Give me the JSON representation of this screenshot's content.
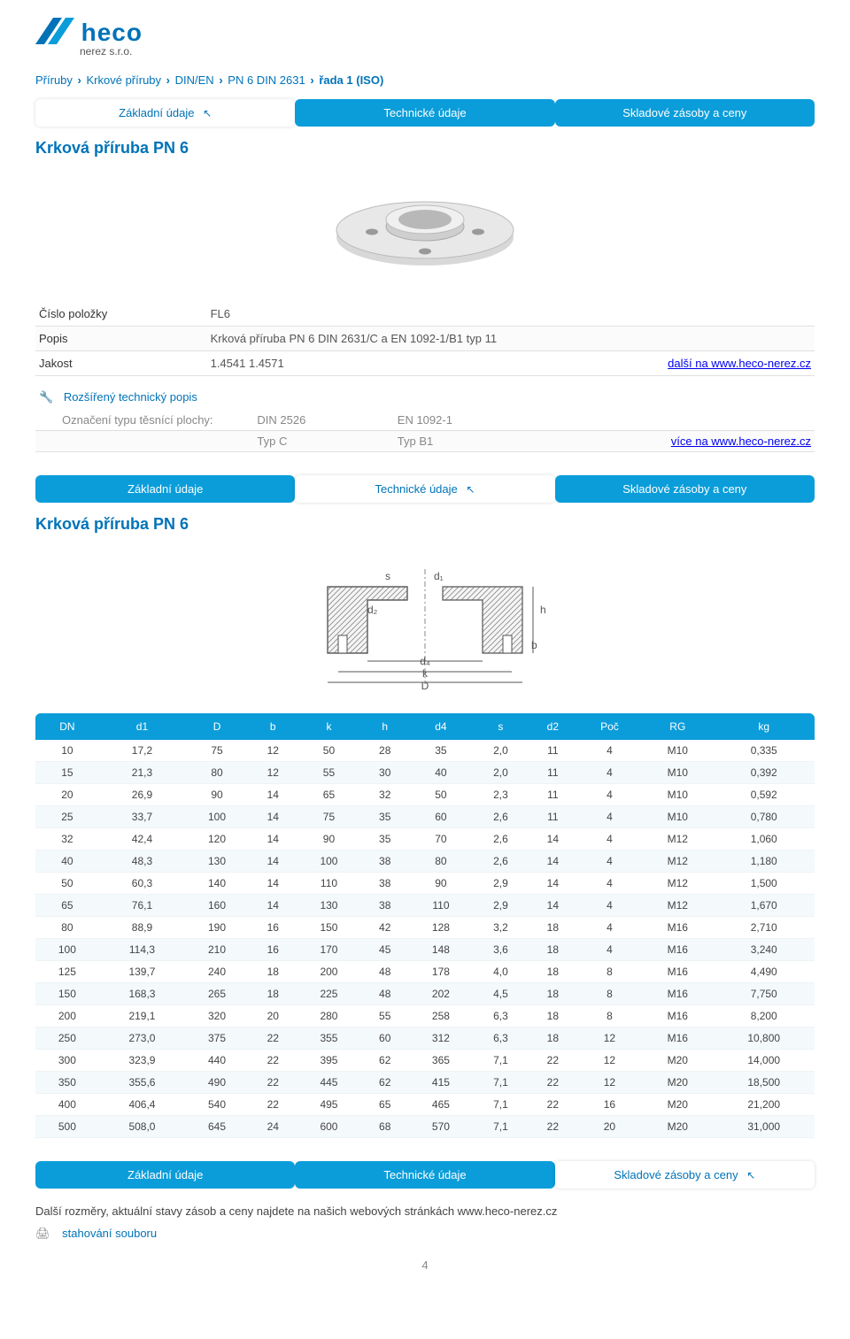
{
  "logo": {
    "brand": "heco",
    "sub": "nerez s.r.o."
  },
  "breadcrumb": [
    "Příruby",
    "Krkové příruby",
    "DIN/EN",
    "PN 6 DIN 2631",
    "řada 1 (ISO)"
  ],
  "tabs": {
    "basic": "Základní údaje",
    "technical": "Technické údaje",
    "stock": "Skladové zásoby a ceny"
  },
  "section_title": "Krková příruba PN 6",
  "info": {
    "item_label": "Číslo položky",
    "item_value": "FL6",
    "desc_label": "Popis",
    "desc_value": "Krková příruba PN 6 DIN 2631/C a EN 1092-1/B1 typ 11",
    "quality_label": "Jakost",
    "quality_value": "1.4541   1.4571",
    "more_link": "další na www.heco-nerez.cz",
    "extended_label": "Rozšířený technický popis",
    "sealing_label": "Označení typu těsnící plochy:",
    "sealing_din": "DIN 2526",
    "sealing_din_type": "Typ C",
    "sealing_en": "EN 1092-1",
    "sealing_en_type": "Typ B1",
    "sealing_link": "více na www.heco-nerez.cz"
  },
  "diagram_labels": [
    "s",
    "d1",
    "d2",
    "h",
    "b",
    "d4",
    "k",
    "D"
  ],
  "table": {
    "columns": [
      "DN",
      "d1",
      "D",
      "b",
      "k",
      "h",
      "d4",
      "s",
      "d2",
      "Poč",
      "RG",
      "kg"
    ],
    "rows": [
      [
        "10",
        "17,2",
        "75",
        "12",
        "50",
        "28",
        "35",
        "2,0",
        "11",
        "4",
        "M10",
        "0,335"
      ],
      [
        "15",
        "21,3",
        "80",
        "12",
        "55",
        "30",
        "40",
        "2,0",
        "11",
        "4",
        "M10",
        "0,392"
      ],
      [
        "20",
        "26,9",
        "90",
        "14",
        "65",
        "32",
        "50",
        "2,3",
        "11",
        "4",
        "M10",
        "0,592"
      ],
      [
        "25",
        "33,7",
        "100",
        "14",
        "75",
        "35",
        "60",
        "2,6",
        "11",
        "4",
        "M10",
        "0,780"
      ],
      [
        "32",
        "42,4",
        "120",
        "14",
        "90",
        "35",
        "70",
        "2,6",
        "14",
        "4",
        "M12",
        "1,060"
      ],
      [
        "40",
        "48,3",
        "130",
        "14",
        "100",
        "38",
        "80",
        "2,6",
        "14",
        "4",
        "M12",
        "1,180"
      ],
      [
        "50",
        "60,3",
        "140",
        "14",
        "110",
        "38",
        "90",
        "2,9",
        "14",
        "4",
        "M12",
        "1,500"
      ],
      [
        "65",
        "76,1",
        "160",
        "14",
        "130",
        "38",
        "110",
        "2,9",
        "14",
        "4",
        "M12",
        "1,670"
      ],
      [
        "80",
        "88,9",
        "190",
        "16",
        "150",
        "42",
        "128",
        "3,2",
        "18",
        "4",
        "M16",
        "2,710"
      ],
      [
        "100",
        "114,3",
        "210",
        "16",
        "170",
        "45",
        "148",
        "3,6",
        "18",
        "4",
        "M16",
        "3,240"
      ],
      [
        "125",
        "139,7",
        "240",
        "18",
        "200",
        "48",
        "178",
        "4,0",
        "18",
        "8",
        "M16",
        "4,490"
      ],
      [
        "150",
        "168,3",
        "265",
        "18",
        "225",
        "48",
        "202",
        "4,5",
        "18",
        "8",
        "M16",
        "7,750"
      ],
      [
        "200",
        "219,1",
        "320",
        "20",
        "280",
        "55",
        "258",
        "6,3",
        "18",
        "8",
        "M16",
        "8,200"
      ],
      [
        "250",
        "273,0",
        "375",
        "22",
        "355",
        "60",
        "312",
        "6,3",
        "18",
        "12",
        "M16",
        "10,800"
      ],
      [
        "300",
        "323,9",
        "440",
        "22",
        "395",
        "62",
        "365",
        "7,1",
        "22",
        "12",
        "M20",
        "14,000"
      ],
      [
        "350",
        "355,6",
        "490",
        "22",
        "445",
        "62",
        "415",
        "7,1",
        "22",
        "12",
        "M20",
        "18,500"
      ],
      [
        "400",
        "406,4",
        "540",
        "22",
        "495",
        "65",
        "465",
        "7,1",
        "22",
        "16",
        "M20",
        "21,200"
      ],
      [
        "500",
        "508,0",
        "645",
        "24",
        "600",
        "68",
        "570",
        "7,1",
        "22",
        "20",
        "M20",
        "31,000"
      ]
    ]
  },
  "footer_note": "Další rozměry, aktuální stavy zásob a ceny najdete na našich webových stránkách www.heco-nerez.cz",
  "download_label": "stahování souboru",
  "page_num": "4",
  "colors": {
    "brand": "#0073b8",
    "tab_blue": "#0a9dda",
    "stripe": "#f4f9fc",
    "border": "#e0e0e0",
    "grey": "#888888"
  }
}
